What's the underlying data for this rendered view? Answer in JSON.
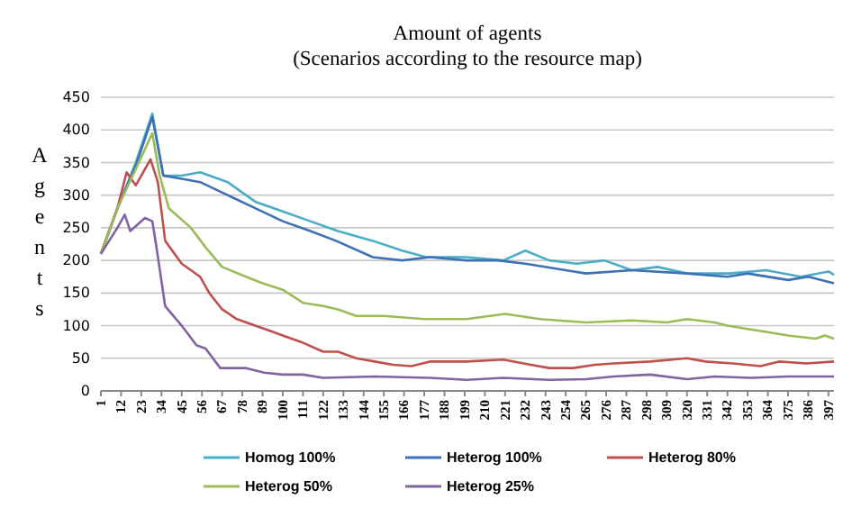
{
  "chart_data": {
    "type": "line",
    "title": "Amount of agents\n(Scenarios according to the resource map)",
    "ylabel": "Agents",
    "xlim": [
      1,
      400
    ],
    "xticks": [
      1,
      12,
      23,
      34,
      45,
      56,
      67,
      78,
      89,
      100,
      111,
      122,
      133,
      144,
      155,
      166,
      177,
      188,
      199,
      210,
      221,
      232,
      243,
      254,
      265,
      276,
      287,
      298,
      309,
      320,
      331,
      342,
      353,
      364,
      375,
      386,
      397
    ],
    "ylim": [
      0,
      450
    ],
    "yticks": [
      0,
      50,
      100,
      150,
      200,
      250,
      300,
      350,
      400,
      450
    ],
    "grid": "y",
    "legend": "bottom",
    "series": [
      {
        "name": "Homog 100%",
        "color": "#4bacc6",
        "x": [
          1,
          10,
          20,
          29,
          35,
          45,
          55,
          65,
          70,
          85,
          100,
          115,
          130,
          149,
          165,
          178,
          200,
          220,
          232,
          245,
          260,
          275,
          290,
          304,
          320,
          343,
          363,
          382,
          397,
          400
        ],
        "values": [
          210,
          280,
          350,
          425,
          330,
          330,
          335,
          325,
          320,
          290,
          275,
          260,
          245,
          230,
          215,
          205,
          205,
          200,
          215,
          200,
          195,
          200,
          185,
          190,
          180,
          180,
          185,
          175,
          183,
          178
        ]
      },
      {
        "name": "Heterog 100%",
        "color": "#3e70b5",
        "x": [
          1,
          10,
          20,
          29,
          35,
          45,
          55,
          70,
          85,
          100,
          115,
          129,
          149,
          165,
          180,
          200,
          217,
          232,
          254,
          265,
          290,
          320,
          342,
          353,
          375,
          386,
          400
        ],
        "values": [
          210,
          280,
          345,
          420,
          330,
          325,
          320,
          300,
          280,
          260,
          245,
          230,
          205,
          200,
          205,
          200,
          200,
          195,
          185,
          180,
          185,
          180,
          175,
          180,
          170,
          175,
          165
        ]
      },
      {
        "name": "Heterog 80%",
        "color": "#c0504d",
        "x": [
          1,
          10,
          15,
          20,
          28,
          32,
          36,
          45,
          55,
          60,
          67,
          75,
          85,
          95,
          100,
          110,
          122,
          130,
          140,
          150,
          160,
          170,
          180,
          200,
          220,
          235,
          245,
          258,
          270,
          280,
          300,
          320,
          330,
          345,
          360,
          370,
          385,
          400
        ],
        "values": [
          210,
          280,
          335,
          315,
          355,
          320,
          230,
          195,
          175,
          150,
          125,
          110,
          100,
          90,
          85,
          75,
          60,
          60,
          50,
          45,
          40,
          38,
          45,
          45,
          48,
          40,
          35,
          35,
          40,
          42,
          45,
          50,
          45,
          42,
          38,
          45,
          42,
          45
        ]
      },
      {
        "name": "Heterog 50%",
        "color": "#9bbb59",
        "x": [
          1,
          10,
          20,
          29,
          33,
          38,
          50,
          58,
          67,
          80,
          89,
          100,
          111,
          122,
          130,
          140,
          155,
          177,
          200,
          221,
          240,
          265,
          290,
          309,
          320,
          335,
          342,
          353,
          364,
          375,
          390,
          395,
          400
        ],
        "values": [
          210,
          280,
          340,
          395,
          330,
          280,
          250,
          220,
          190,
          175,
          165,
          155,
          135,
          130,
          125,
          115,
          115,
          110,
          110,
          118,
          110,
          105,
          108,
          105,
          110,
          105,
          100,
          95,
          90,
          85,
          80,
          85,
          80
        ]
      },
      {
        "name": "Heterog 25%",
        "color": "#8064a2",
        "x": [
          1,
          10,
          14,
          17,
          25,
          29,
          31,
          36,
          45,
          53,
          58,
          66,
          80,
          90,
          100,
          111,
          122,
          150,
          180,
          200,
          220,
          245,
          265,
          280,
          300,
          320,
          335,
          355,
          375,
          400
        ],
        "values": [
          210,
          250,
          270,
          245,
          265,
          260,
          225,
          130,
          100,
          70,
          65,
          35,
          35,
          28,
          25,
          25,
          20,
          22,
          20,
          17,
          20,
          17,
          18,
          22,
          25,
          18,
          22,
          20,
          22,
          22
        ]
      }
    ]
  }
}
